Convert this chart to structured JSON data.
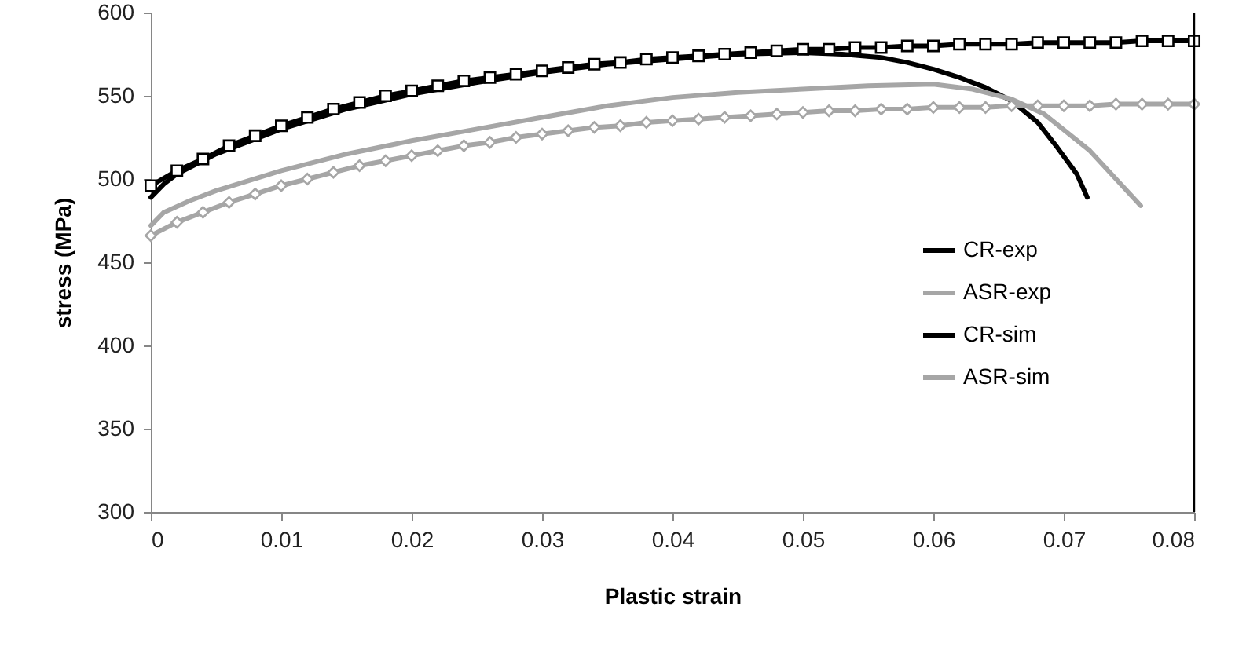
{
  "chart_data": {
    "type": "line",
    "xlabel": "Plastic strain",
    "ylabel": "stress (MPa)",
    "xlim": [
      0,
      0.08
    ],
    "ylim": [
      300,
      600
    ],
    "xticks": [
      0,
      0.01,
      0.02,
      0.03,
      0.04,
      0.05,
      0.06,
      0.07,
      0.08
    ],
    "yticks": [
      300,
      350,
      400,
      450,
      500,
      550,
      600
    ],
    "grid": false,
    "legend": "right",
    "series": [
      {
        "name": "CR-exp",
        "color": "#000000",
        "marker": "none",
        "x": [
          0,
          0.001,
          0.002,
          0.005,
          0.01,
          0.015,
          0.02,
          0.025,
          0.03,
          0.035,
          0.04,
          0.045,
          0.05,
          0.053,
          0.056,
          0.058,
          0.06,
          0.062,
          0.064,
          0.066,
          0.068,
          0.0695,
          0.071,
          0.0718
        ],
        "values": [
          489,
          497,
          503,
          515,
          530,
          542,
          551,
          558,
          564,
          569,
          572,
          575,
          576,
          575,
          573,
          570,
          566,
          561,
          555,
          547,
          534,
          519,
          503,
          489
        ]
      },
      {
        "name": "ASR-exp",
        "color": "#a6a6a6",
        "marker": "none",
        "x": [
          0,
          0.001,
          0.003,
          0.005,
          0.01,
          0.015,
          0.02,
          0.025,
          0.03,
          0.035,
          0.04,
          0.045,
          0.05,
          0.055,
          0.06,
          0.063,
          0.066,
          0.0685,
          0.072,
          0.0759
        ],
        "values": [
          472,
          480,
          487,
          493,
          505,
          515,
          523,
          530,
          537,
          544,
          549,
          552,
          554,
          556,
          557,
          554,
          548,
          539,
          517,
          484
        ]
      },
      {
        "name": "CR-sim",
        "color": "#000000",
        "marker": "square",
        "x": [
          0,
          0.002,
          0.004,
          0.006,
          0.008,
          0.01,
          0.012,
          0.014,
          0.016,
          0.018,
          0.02,
          0.022,
          0.024,
          0.026,
          0.028,
          0.03,
          0.032,
          0.034,
          0.036,
          0.038,
          0.04,
          0.042,
          0.044,
          0.046,
          0.048,
          0.05,
          0.052,
          0.054,
          0.056,
          0.058,
          0.06,
          0.062,
          0.064,
          0.066,
          0.068,
          0.07,
          0.072,
          0.074,
          0.076,
          0.078,
          0.08
        ],
        "values": [
          496,
          505,
          512,
          520,
          526,
          532,
          537,
          542,
          546,
          550,
          553,
          556,
          559,
          561,
          563,
          565,
          567,
          569,
          570,
          572,
          573,
          574,
          575,
          576,
          577,
          578,
          578,
          579,
          579,
          580,
          580,
          581,
          581,
          581,
          582,
          582,
          582,
          582,
          583,
          583,
          583
        ]
      },
      {
        "name": "ASR-sim",
        "color": "#a6a6a6",
        "marker": "diamond",
        "x": [
          0,
          0.002,
          0.004,
          0.006,
          0.008,
          0.01,
          0.012,
          0.014,
          0.016,
          0.018,
          0.02,
          0.022,
          0.024,
          0.026,
          0.028,
          0.03,
          0.032,
          0.034,
          0.036,
          0.038,
          0.04,
          0.042,
          0.044,
          0.046,
          0.048,
          0.05,
          0.052,
          0.054,
          0.056,
          0.058,
          0.06,
          0.062,
          0.064,
          0.066,
          0.068,
          0.07,
          0.072,
          0.074,
          0.076,
          0.078,
          0.08
        ],
        "values": [
          466,
          474,
          480,
          486,
          491,
          496,
          500,
          504,
          508,
          511,
          514,
          517,
          520,
          522,
          525,
          527,
          529,
          531,
          532,
          534,
          535,
          536,
          537,
          538,
          539,
          540,
          541,
          541,
          542,
          542,
          543,
          543,
          543,
          544,
          544,
          544,
          544,
          545,
          545,
          545,
          545
        ]
      }
    ],
    "ref_lines": [
      {
        "axis": "x",
        "value": 0.08,
        "color": "#000000"
      }
    ]
  }
}
